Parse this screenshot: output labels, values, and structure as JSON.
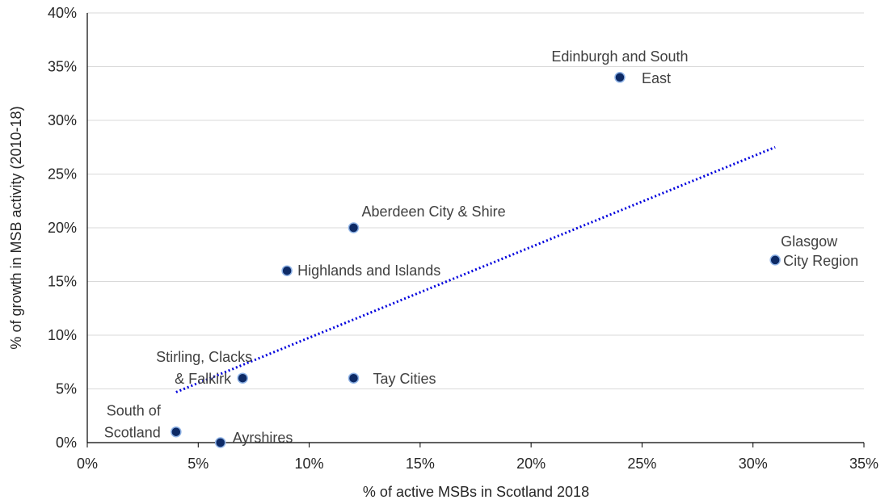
{
  "chart_data": {
    "type": "scatter",
    "title": "",
    "xlabel": "% of active MSBs in Scotland 2018",
    "ylabel": "% of growth in MSB activity (2010-18)",
    "xlim": [
      0,
      35
    ],
    "ylim": [
      0,
      40
    ],
    "x_ticks": [
      "0%",
      "5%",
      "10%",
      "15%",
      "20%",
      "25%",
      "30%",
      "35%"
    ],
    "y_ticks": [
      "0%",
      "5%",
      "10%",
      "15%",
      "20%",
      "25%",
      "30%",
      "35%",
      "40%"
    ],
    "grid": true,
    "legend": "none",
    "points": [
      {
        "label": "Edinburgh and South East",
        "x": 24,
        "y": 34
      },
      {
        "label": "Aberdeen City & Shire",
        "x": 12,
        "y": 20
      },
      {
        "label": "Highlands and Islands",
        "x": 9,
        "y": 16
      },
      {
        "label": "Glasgow City Region",
        "x": 31,
        "y": 17
      },
      {
        "label": "Stirling, Clacks & Falkirk",
        "x": 7,
        "y": 6
      },
      {
        "label": "Tay Cities",
        "x": 12,
        "y": 6
      },
      {
        "label": "South of Scotland",
        "x": 4,
        "y": 1
      },
      {
        "label": "Ayrshires",
        "x": 6,
        "y": 0
      }
    ],
    "trendline": {
      "style": "dotted linear",
      "x": [
        4,
        31
      ],
      "y": [
        4.7,
        27.5
      ]
    },
    "colors": {
      "marker": "#0d2a66",
      "marker_edge": "#8fb3e6",
      "trend": "#0000dd",
      "grid": "#d9d9d9",
      "text": "#404040"
    }
  }
}
